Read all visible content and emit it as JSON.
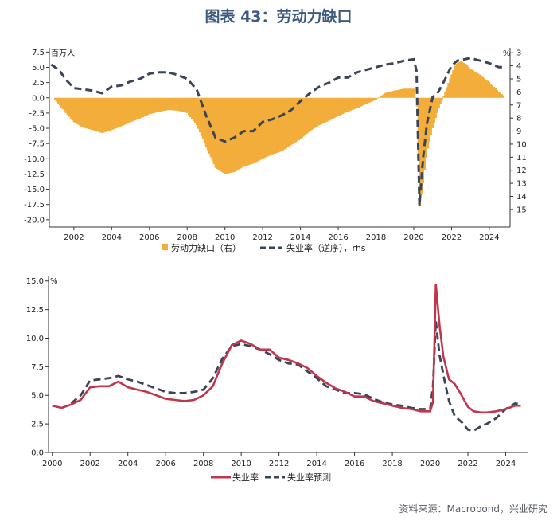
{
  "title": "图表 43：劳动力缺口",
  "source": "资料来源：Macrobond，兴业研究",
  "colors": {
    "bar": "#f2ad3a",
    "dash": "#3a4557",
    "actual": "#c0364a",
    "axis": "#333333"
  },
  "chart_data": [
    {
      "type": "bar",
      "title": "劳动力缺口",
      "left_unit": "百万人",
      "right_unit": "%",
      "xlim": [
        2000.7,
        2025.1
      ],
      "ylim": [
        -21.2,
        8.2
      ],
      "y2lim": [
        2.62,
        16.35
      ],
      "x_ticks": [
        "2002",
        "2004",
        "2006",
        "2008",
        "2010",
        "2012",
        "2014",
        "2016",
        "2018",
        "2020",
        "2022",
        "2024"
      ],
      "y_ticks": [
        "7.5",
        "5.0",
        "2.5",
        "0.0",
        "-2.5",
        "-5.0",
        "-7.5",
        "-10.0",
        "-12.5",
        "-15.0",
        "-17.5",
        "-20.0"
      ],
      "y2_ticks": [
        "3",
        "4",
        "5",
        "6",
        "7",
        "8",
        "9",
        "10",
        "11",
        "12",
        "13",
        "14",
        "15"
      ],
      "legend": [
        "劳动力缺口（右）",
        "失业率（逆序），rhs"
      ],
      "series": [
        {
          "name": "劳动力缺口",
          "points": [
            [
              2001,
              -0.3
            ],
            [
              2001.5,
              -2.2
            ],
            [
              2002,
              -4.0
            ],
            [
              2002.5,
              -4.9
            ],
            [
              2003,
              -5.3
            ],
            [
              2003.5,
              -5.8
            ],
            [
              2004,
              -5.3
            ],
            [
              2004.5,
              -4.7
            ],
            [
              2005,
              -4.0
            ],
            [
              2005.5,
              -3.4
            ],
            [
              2006,
              -2.7
            ],
            [
              2006.5,
              -2.3
            ],
            [
              2007,
              -2.0
            ],
            [
              2007.5,
              -2.1
            ],
            [
              2008,
              -2.5
            ],
            [
              2008.5,
              -4.5
            ],
            [
              2009,
              -8.0
            ],
            [
              2009.5,
              -11.5
            ],
            [
              2010,
              -12.5
            ],
            [
              2010.5,
              -12.2
            ],
            [
              2011,
              -11.3
            ],
            [
              2011.5,
              -10.8
            ],
            [
              2012,
              -10.0
            ],
            [
              2012.5,
              -9.3
            ],
            [
              2013,
              -8.8
            ],
            [
              2013.5,
              -7.8
            ],
            [
              2014,
              -6.8
            ],
            [
              2014.5,
              -5.5
            ],
            [
              2015,
              -4.5
            ],
            [
              2015.5,
              -3.8
            ],
            [
              2016,
              -3.0
            ],
            [
              2016.5,
              -2.3
            ],
            [
              2017,
              -1.7
            ],
            [
              2017.5,
              -1.0
            ],
            [
              2018,
              -0.3
            ],
            [
              2018.5,
              0.8
            ],
            [
              2019,
              1.2
            ],
            [
              2019.5,
              1.5
            ],
            [
              2020,
              1.5
            ],
            [
              2020.2,
              -2.0
            ],
            [
              2020.3,
              -18.5
            ],
            [
              2020.5,
              -14.0
            ],
            [
              2020.7,
              -9.0
            ],
            [
              2021,
              -5.0
            ],
            [
              2021.3,
              -2.0
            ],
            [
              2021.6,
              0.5
            ],
            [
              2021.9,
              3.0
            ],
            [
              2022.2,
              5.5
            ],
            [
              2022.5,
              6.0
            ],
            [
              2022.8,
              5.5
            ],
            [
              2023,
              4.8
            ],
            [
              2023.5,
              3.8
            ],
            [
              2024,
              2.6
            ],
            [
              2024.5,
              1.0
            ],
            [
              2024.8,
              0.3
            ]
          ]
        },
        {
          "name": "失业率（逆序）",
          "points": [
            [
              2000.8,
              3.9
            ],
            [
              2001.2,
              4.3
            ],
            [
              2001.6,
              5.1
            ],
            [
              2002,
              5.7
            ],
            [
              2002.5,
              5.8
            ],
            [
              2003,
              5.9
            ],
            [
              2003.5,
              6.1
            ],
            [
              2004,
              5.6
            ],
            [
              2004.5,
              5.5
            ],
            [
              2005,
              5.2
            ],
            [
              2005.5,
              5.0
            ],
            [
              2006,
              4.6
            ],
            [
              2006.5,
              4.5
            ],
            [
              2007,
              4.5
            ],
            [
              2007.5,
              4.7
            ],
            [
              2008,
              5.0
            ],
            [
              2008.5,
              5.8
            ],
            [
              2009,
              7.8
            ],
            [
              2009.5,
              9.5
            ],
            [
              2010,
              9.8
            ],
            [
              2010.5,
              9.5
            ],
            [
              2011,
              9.0
            ],
            [
              2011.5,
              9.0
            ],
            [
              2012,
              8.3
            ],
            [
              2012.5,
              8.1
            ],
            [
              2013,
              7.8
            ],
            [
              2013.5,
              7.4
            ],
            [
              2014,
              6.7
            ],
            [
              2014.5,
              6.1
            ],
            [
              2015,
              5.6
            ],
            [
              2015.5,
              5.3
            ],
            [
              2016,
              4.9
            ],
            [
              2016.5,
              4.9
            ],
            [
              2017,
              4.5
            ],
            [
              2017.5,
              4.3
            ],
            [
              2018,
              4.1
            ],
            [
              2018.5,
              3.9
            ],
            [
              2019,
              3.8
            ],
            [
              2019.5,
              3.6
            ],
            [
              2020,
              3.5
            ],
            [
              2020.15,
              4.4
            ],
            [
              2020.3,
              14.7
            ],
            [
              2020.5,
              11.0
            ],
            [
              2020.7,
              8.4
            ],
            [
              2021,
              6.4
            ],
            [
              2021.3,
              6.0
            ],
            [
              2021.6,
              5.2
            ],
            [
              2022,
              4.0
            ],
            [
              2022.3,
              3.6
            ],
            [
              2022.7,
              3.5
            ],
            [
              2023,
              3.4
            ],
            [
              2023.5,
              3.6
            ],
            [
              2024,
              3.8
            ],
            [
              2024.5,
              4.1
            ],
            [
              2024.8,
              4.1
            ]
          ]
        }
      ]
    },
    {
      "type": "line",
      "title": "",
      "left_unit": "%",
      "xlim": [
        1999.8,
        2025.2
      ],
      "ylim": [
        0,
        15.4
      ],
      "x_ticks": [
        "2000",
        "2002",
        "2004",
        "2006",
        "2008",
        "2010",
        "2012",
        "2014",
        "2016",
        "2018",
        "2020",
        "2022",
        "2024"
      ],
      "y_ticks": [
        "15.0",
        "12.5",
        "10.0",
        "7.5",
        "5.0",
        "2.5",
        "0.0"
      ],
      "legend": [
        "失业率",
        "失业率预测"
      ],
      "series": [
        {
          "name": "失业率",
          "points": [
            [
              2000,
              4.1
            ],
            [
              2000.5,
              3.9
            ],
            [
              2001,
              4.2
            ],
            [
              2001.5,
              4.6
            ],
            [
              2002,
              5.7
            ],
            [
              2002.5,
              5.8
            ],
            [
              2003,
              5.8
            ],
            [
              2003.5,
              6.2
            ],
            [
              2004,
              5.7
            ],
            [
              2004.5,
              5.5
            ],
            [
              2005,
              5.3
            ],
            [
              2005.5,
              5.0
            ],
            [
              2006,
              4.7
            ],
            [
              2006.5,
              4.6
            ],
            [
              2007,
              4.5
            ],
            [
              2007.5,
              4.6
            ],
            [
              2008,
              5.0
            ],
            [
              2008.5,
              5.8
            ],
            [
              2009,
              7.8
            ],
            [
              2009.5,
              9.4
            ],
            [
              2010,
              9.8
            ],
            [
              2010.5,
              9.5
            ],
            [
              2011,
              9.0
            ],
            [
              2011.5,
              9.0
            ],
            [
              2012,
              8.3
            ],
            [
              2012.5,
              8.1
            ],
            [
              2013,
              7.8
            ],
            [
              2013.5,
              7.4
            ],
            [
              2014,
              6.7
            ],
            [
              2014.5,
              6.1
            ],
            [
              2015,
              5.6
            ],
            [
              2015.5,
              5.3
            ],
            [
              2016,
              4.9
            ],
            [
              2016.5,
              4.9
            ],
            [
              2017,
              4.5
            ],
            [
              2017.5,
              4.3
            ],
            [
              2018,
              4.1
            ],
            [
              2018.5,
              3.9
            ],
            [
              2019,
              3.8
            ],
            [
              2019.5,
              3.6
            ],
            [
              2020,
              3.6
            ],
            [
              2020.15,
              4.4
            ],
            [
              2020.3,
              14.7
            ],
            [
              2020.5,
              11.1
            ],
            [
              2020.7,
              8.4
            ],
            [
              2021,
              6.4
            ],
            [
              2021.3,
              6.0
            ],
            [
              2021.6,
              5.2
            ],
            [
              2022,
              4.0
            ],
            [
              2022.3,
              3.6
            ],
            [
              2022.7,
              3.5
            ],
            [
              2023,
              3.5
            ],
            [
              2023.5,
              3.6
            ],
            [
              2024,
              3.8
            ],
            [
              2024.5,
              4.1
            ],
            [
              2024.8,
              4.1
            ]
          ]
        },
        {
          "name": "失业率预测",
          "points": [
            [
              2001,
              4.3
            ],
            [
              2001.5,
              5.0
            ],
            [
              2002,
              6.3
            ],
            [
              2002.5,
              6.4
            ],
            [
              2003,
              6.5
            ],
            [
              2003.5,
              6.7
            ],
            [
              2004,
              6.4
            ],
            [
              2004.5,
              6.2
            ],
            [
              2005,
              5.9
            ],
            [
              2005.5,
              5.6
            ],
            [
              2006,
              5.3
            ],
            [
              2006.5,
              5.2
            ],
            [
              2007,
              5.2
            ],
            [
              2007.5,
              5.3
            ],
            [
              2008,
              5.5
            ],
            [
              2008.5,
              6.5
            ],
            [
              2009,
              8.2
            ],
            [
              2009.5,
              9.3
            ],
            [
              2010,
              9.5
            ],
            [
              2010.5,
              9.3
            ],
            [
              2011,
              9.0
            ],
            [
              2011.5,
              8.6
            ],
            [
              2012,
              8.1
            ],
            [
              2012.5,
              7.8
            ],
            [
              2013,
              7.7
            ],
            [
              2013.5,
              7.1
            ],
            [
              2014,
              6.5
            ],
            [
              2014.5,
              5.8
            ],
            [
              2015,
              5.5
            ],
            [
              2015.5,
              5.2
            ],
            [
              2016,
              5.2
            ],
            [
              2016.5,
              5.1
            ],
            [
              2017,
              4.7
            ],
            [
              2017.5,
              4.4
            ],
            [
              2018,
              4.2
            ],
            [
              2018.5,
              4.1
            ],
            [
              2019,
              3.9
            ],
            [
              2019.5,
              3.8
            ],
            [
              2020,
              3.8
            ],
            [
              2020.15,
              5.8
            ],
            [
              2020.3,
              11.5
            ],
            [
              2020.5,
              8.5
            ],
            [
              2020.8,
              6.0
            ],
            [
              2021,
              4.5
            ],
            [
              2021.3,
              3.2
            ],
            [
              2021.7,
              2.6
            ],
            [
              2022,
              2.0
            ],
            [
              2022.3,
              1.9
            ],
            [
              2022.7,
              2.3
            ],
            [
              2023,
              2.5
            ],
            [
              2023.5,
              3.0
            ],
            [
              2024,
              3.8
            ],
            [
              2024.5,
              4.3
            ],
            [
              2024.8,
              4.2
            ]
          ]
        }
      ]
    }
  ]
}
